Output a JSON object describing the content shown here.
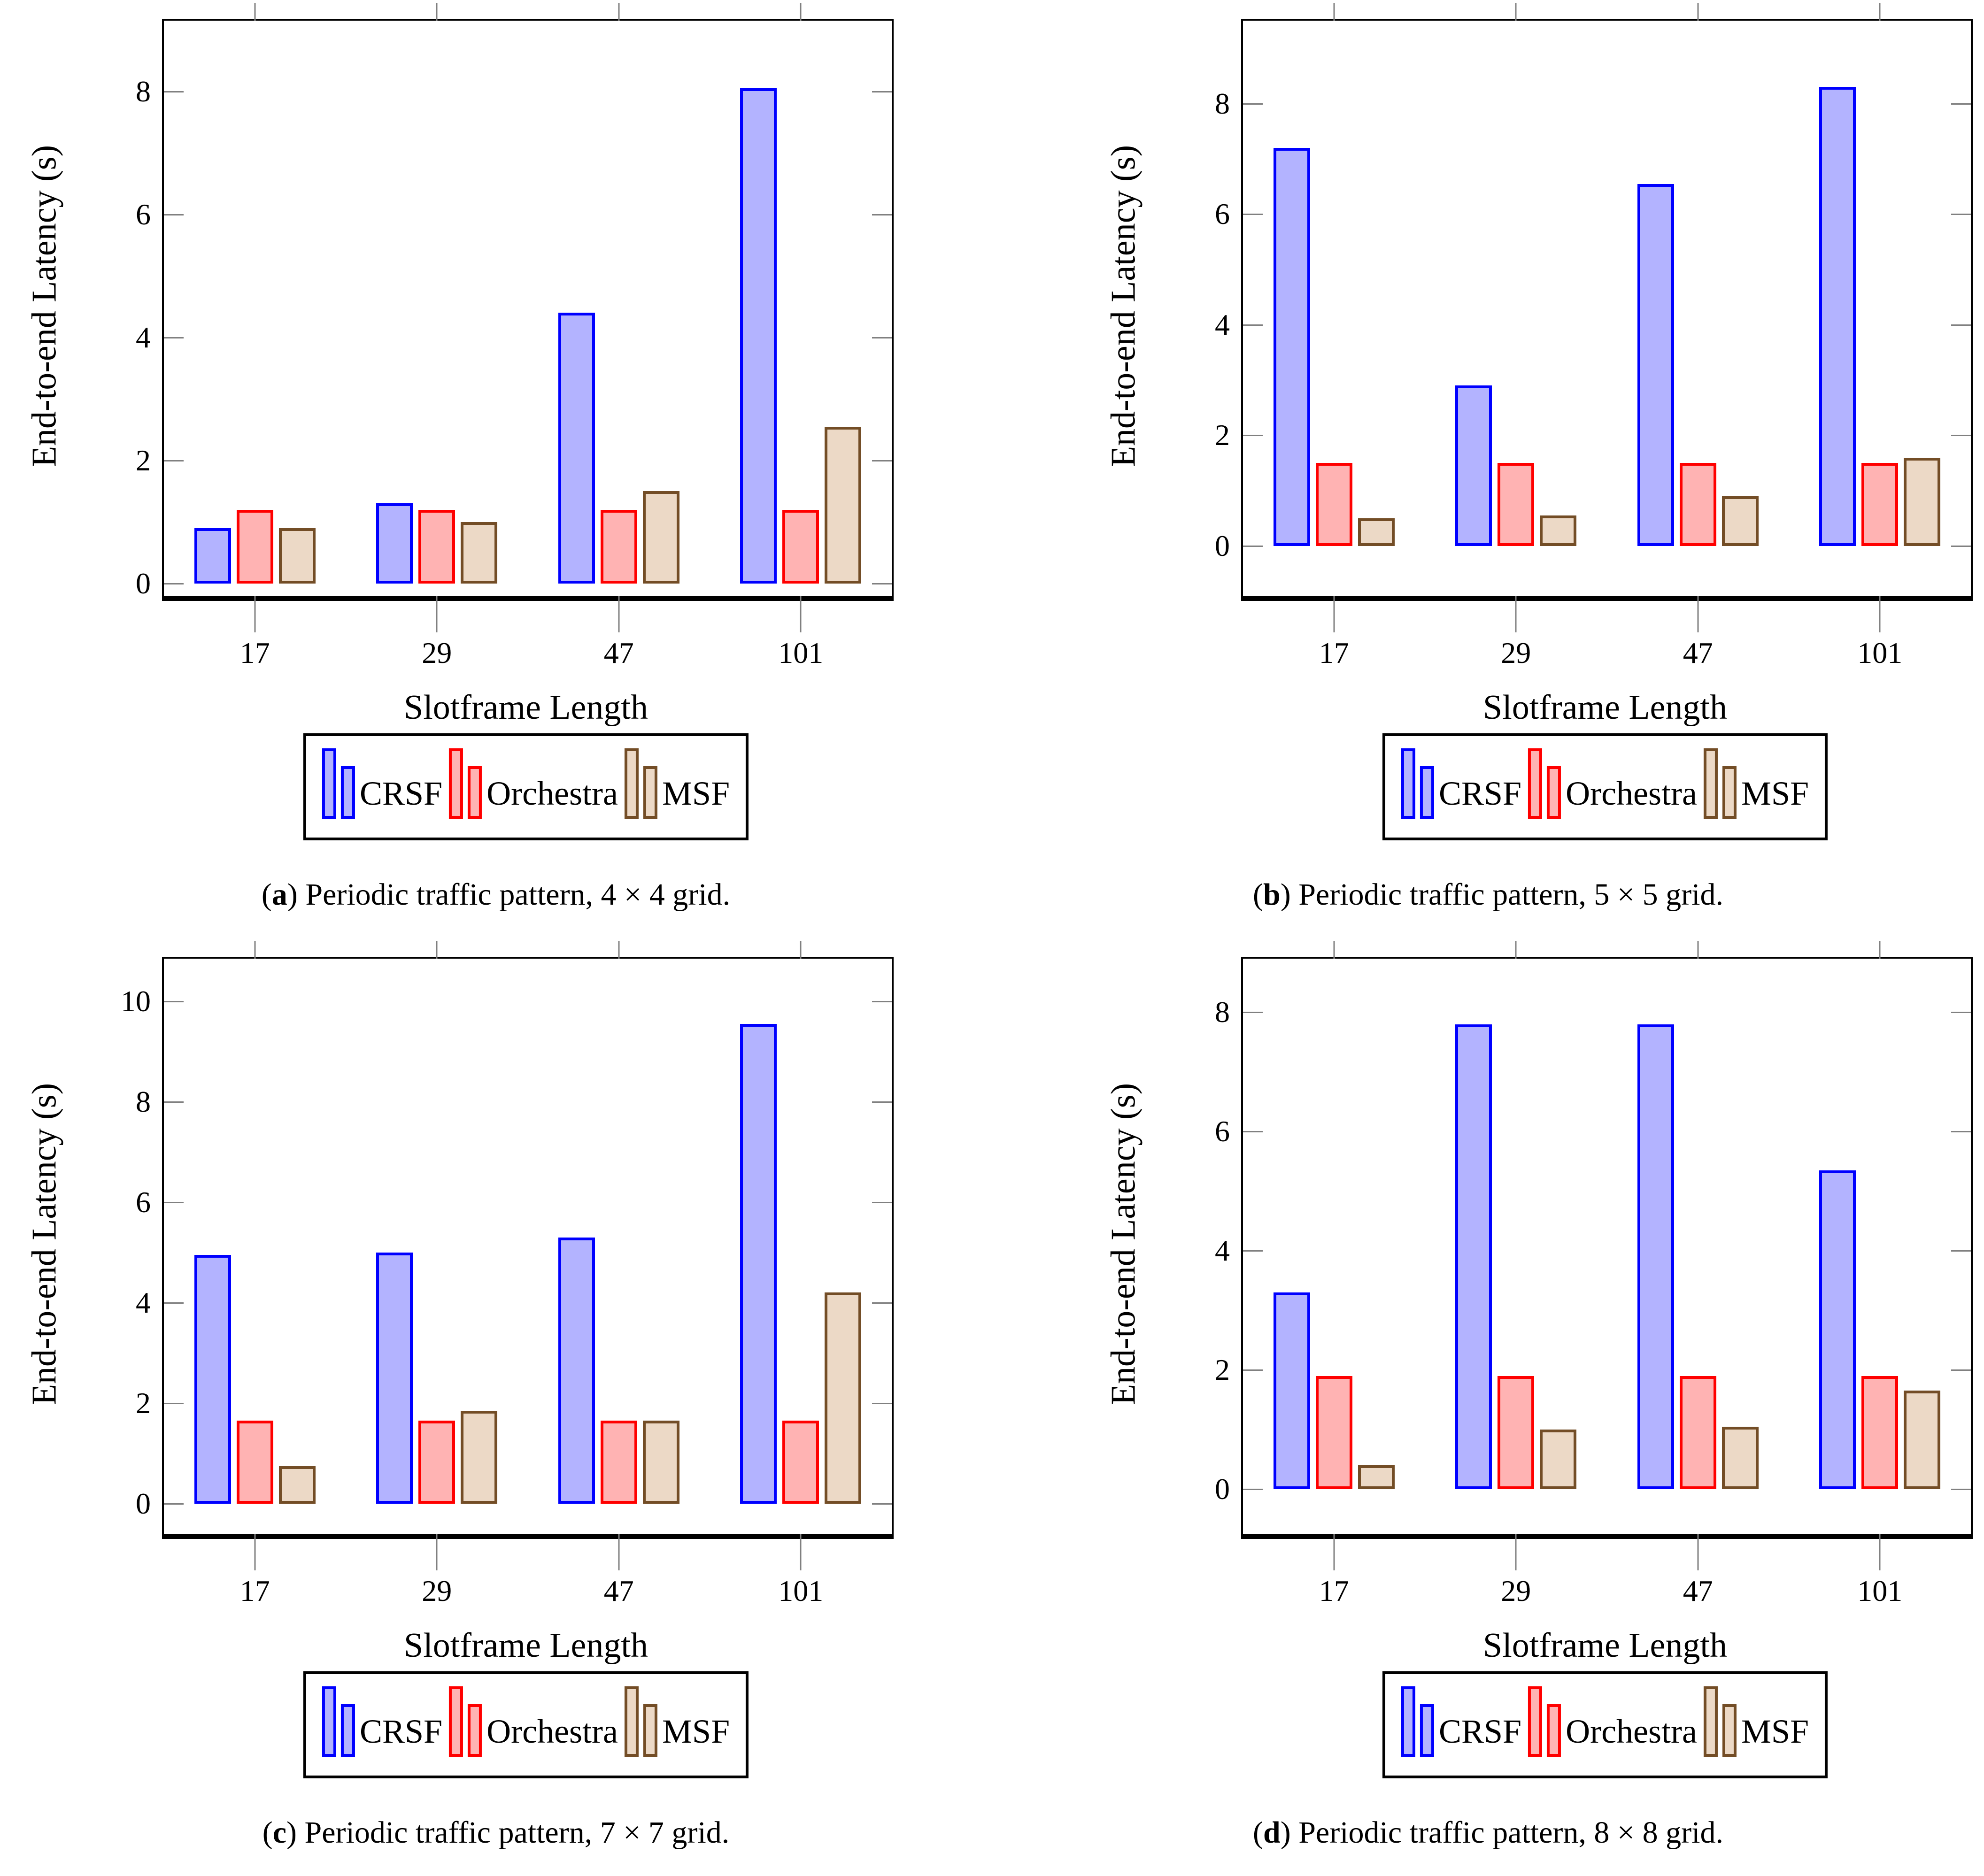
{
  "figure": {
    "background": "#ffffff",
    "tick_color": "#808080",
    "axis_color": "#000000"
  },
  "legend": {
    "position": "below-xlabel",
    "series": [
      {
        "name": "CRSF",
        "fill": "#B3B3FF",
        "stroke": "#0000FF"
      },
      {
        "name": "Orchestra",
        "fill": "#FFB3B3",
        "stroke": "#FF0000"
      },
      {
        "name": "MSF",
        "fill": "#ECD9C6",
        "stroke": "#734D26"
      }
    ]
  },
  "chart_data": [
    {
      "type": "bar",
      "title": "",
      "caption_letter": "a",
      "caption_text": ") Periodic traffic pattern, 4 × 4 grid.",
      "caption_prefix": "(",
      "xlabel": "Slotframe Length",
      "ylabel": "End-to-end Latency (s)",
      "categories": [
        "17",
        "29",
        "47",
        "101"
      ],
      "yticks": [
        0,
        2,
        4,
        6,
        8
      ],
      "ylim": [
        -0.2,
        9.15
      ],
      "grid": false,
      "series": [
        {
          "name": "CRSF",
          "values": [
            0.9,
            1.3,
            4.4,
            8.05
          ]
        },
        {
          "name": "Orchestra",
          "values": [
            1.2,
            1.2,
            1.2,
            1.2
          ]
        },
        {
          "name": "MSF",
          "values": [
            0.9,
            1.0,
            1.5,
            2.55
          ]
        }
      ]
    },
    {
      "type": "bar",
      "title": "",
      "caption_letter": "b",
      "caption_text": ") Periodic traffic pattern, 5 × 5 grid.",
      "caption_prefix": "(",
      "xlabel": "Slotframe Length",
      "ylabel": "End-to-end Latency (s)",
      "categories": [
        "17",
        "29",
        "47",
        "101"
      ],
      "yticks": [
        0,
        2,
        4,
        6,
        8
      ],
      "ylim": [
        -0.9,
        9.5
      ],
      "grid": false,
      "series": [
        {
          "name": "CRSF",
          "values": [
            7.2,
            2.9,
            6.55,
            8.3
          ]
        },
        {
          "name": "Orchestra",
          "values": [
            1.5,
            1.5,
            1.5,
            1.5
          ]
        },
        {
          "name": "MSF",
          "values": [
            0.5,
            0.55,
            0.9,
            1.6
          ]
        }
      ]
    },
    {
      "type": "bar",
      "title": "",
      "caption_letter": "c",
      "caption_text": ") Periodic traffic pattern, 7 × 7 grid.",
      "caption_prefix": "(",
      "xlabel": "Slotframe Length",
      "ylabel": "End-to-end Latency (s)",
      "categories": [
        "17",
        "29",
        "47",
        "101"
      ],
      "yticks": [
        0,
        2,
        4,
        6,
        8,
        10
      ],
      "ylim": [
        -0.6,
        10.85
      ],
      "grid": false,
      "series": [
        {
          "name": "CRSF",
          "values": [
            4.95,
            5.0,
            5.3,
            9.55
          ]
        },
        {
          "name": "Orchestra",
          "values": [
            1.65,
            1.65,
            1.65,
            1.65
          ]
        },
        {
          "name": "MSF",
          "values": [
            0.75,
            1.85,
            1.65,
            4.2
          ]
        }
      ]
    },
    {
      "type": "bar",
      "title": "",
      "caption_letter": "d",
      "caption_text": ") Periodic traffic pattern, 8 × 8 grid.",
      "caption_prefix": "(",
      "xlabel": "Slotframe Length",
      "ylabel": "End-to-end Latency (s)",
      "categories": [
        "17",
        "29",
        "47",
        "101"
      ],
      "yticks": [
        0,
        2,
        4,
        6,
        8
      ],
      "ylim": [
        -0.75,
        8.9
      ],
      "grid": false,
      "series": [
        {
          "name": "CRSF",
          "values": [
            3.3,
            7.8,
            7.8,
            5.35
          ]
        },
        {
          "name": "Orchestra",
          "values": [
            1.9,
            1.9,
            1.9,
            1.9
          ]
        },
        {
          "name": "MSF",
          "values": [
            0.4,
            1.0,
            1.05,
            1.65
          ]
        }
      ]
    }
  ]
}
